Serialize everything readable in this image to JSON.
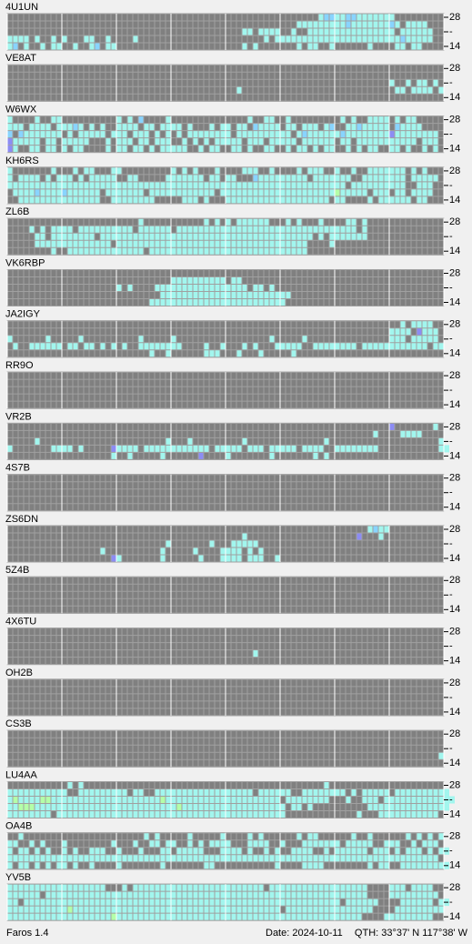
{
  "band_labels": [
    "28",
    "-",
    "14"
  ],
  "palette": {
    "1": "#a2f6ee",
    "2": "#88d4ff",
    "3": "#8c8cf4",
    "4": "#b4ffa8"
  },
  "stations": [
    {
      "name": "4U1UN",
      "rows": [
        ".........................................................12211221111111",
        ".....................................................1111111112111111121.1111",
        "...........................................11.1111..1..1111111111111111.111111",
        "1111.1..1.1...11..1....1.......................1.11111111111111111111111211111",
        "12.1..1.11..1..12.11.......................1.1.......1.11..1......1....11.11."
      ]
    },
    {
      "name": "VE8AT",
      "rows": [
        "",
        "",
        "......................................................................1..1.11.1",
        "..........................................1............................11.1111.1",
        ""
      ]
    },
    {
      "name": "W6WX",
      "rows": [
        "1....1..11..........1.1.2....1..............1..11..1.........1.1..1111.1.11...",
        "111.1111.11121.1.1..1111.11.1111.1...1.11.11.21111.11.111.12..11211111.21111..",
        "2.21111111.1.11111.111.111.1.1.1.11111111.1111111111.12111111211111111311111111",
        "311111.11.11111...1.111.11.111..1.1.1.11111.111.11111.111111.11.11111111111.111",
        "31..11.11.1.11....1.11.11.1.11111..1.11..11.1..11..1.11.1.11..1.1.11..11.1..1.1"
      ]
    },
    {
      "name": "KH6RS",
      "rows": [
        "1.......1...1.11...11.........1.1.1...1....111..1....1.111..1..1..1111111.1.1..",
        "1.1111.1.111.1.11111..11.....1111111.11.11...2111111111.1111111..11111111.11111",
        "11111111111111111111111111111111111111111111111111111111111111.1111111111..111.",
        ".1111211112111111.1111111.111111111111.111111111111111111111411111.111.11.1111..",
        "..111111111111111..11111111.....111.1...1111111111111111111.11....1.111111.11..."
      ]
    },
    {
      "name": "ZL6B",
      "rows": [
        "........................1...........1.1.1.111111...1.1...1....11.1.............",
        "....1.1.1111.1111111111.111111.111111111111111111111111111111111.1..............",
        ".....11.11111111.111111111111111111111111111111111111111.1.1111111..............",
        ".....11111111111111.11111111111111111111111111111111111....1.....................",
        "........1..11111111111111.11111111111111111111111111111........................."
      ]
    },
    {
      "name": "VK6RBP",
      "rows": [
        "",
        "..............................1111111111.11..............",
        "....................1.1....11111111111111111.11.1........",
        "............................111111111111111111111111......",
        "..........................1111111111111111111111111......."
      ]
    },
    {
      "name": "JA2IGY",
      "rows": [
        "........................................................................1.1111.",
        "......................................................................1111.3111",
        "1......1.....1..........1.....1.................1.....1...............111.11111.",
        ".1..111111.11.11.1.1.1..11111111....1..1...1.1...11111..11111111.111111111111.11",
        "..........................1..1......111...1...1.....1........................."
      ]
    },
    {
      "name": "RR9O",
      "rows": [
        "",
        "",
        "",
        "",
        ""
      ]
    },
    {
      "name": "VR2B",
      "rows": [
        "......................................................................3.......1",
        "...................................................................1....1111..",
        ".....1.......................1...1.........1..............1....................1.",
        "1.......1111.1.....31111.111111111111.11111.111.11111.1111..11111111...........11.",
        "...................1..1.....1......3....1.......1.......1.1......................"
      ]
    },
    {
      "name": "4S7B",
      "rows": [
        "",
        "",
        "",
        "",
        ""
      ]
    },
    {
      "name": "ZS6DN",
      "rows": [
        "..................................................................1211...........",
        "...........................................1....................3...1............",
        ".............................1.......1...11111.........................",
        ".................1..........1.....1....1111.1.1...........................",
        "...................31.......1......1...1111.111..1........................."
      ]
    },
    {
      "name": "5Z4B",
      "rows": [
        "",
        "",
        "",
        "",
        ""
      ]
    },
    {
      "name": "4X6TU",
      "rows": [
        "",
        "",
        "",
        ".............................................1........",
        ""
      ]
    },
    {
      "name": "OH2B",
      "rows": [
        "",
        "",
        "",
        "",
        ""
      ]
    },
    {
      "name": "CS3B",
      "rows": [
        "",
        "",
        "",
        "...............................................................................1",
        ""
      ]
    },
    {
      "name": "LU4AA",
      "rows": [
        "...........1.1............................................1.......................",
        "11111111111..111111111.11..111111111111111111.111111..11111111.1.11111.1111111111",
        "14111144111111111111111111114111111111111111111111.11111111...1..111.1111111111111",
        "114441111111111111111111111111141111111111111111111.11.1..........111111111111111",
        "11111111.111111111111111111111111111111111111111111.............1...11111111111."
      ]
    },
    {
      "name": "OA4B",
      "rows": [
        "..1......................1.1.....1.....1....1.1......1.11......1..1......1.1.1.1.",
        "11..1.1...1........1...1..11.11..1.1.1111...1111..1...1111111.11111..111..1.111",
        "1.11.1.1..1.1..111..1...1...11.11111...1111.1..1.1..1111..1.111111.111.1.111.1.11",
        "1111111111111111111111111111111111111111111111111111111111111111111111111111111",
        "1.11.1.1.11.1..1....1.......1.......11...........1....1111........1.11..111111111"
      ]
    },
    {
      "name": "YV5B",
      "rows": [
        "111111111111111111...1.111111111111111111111111.111111111111111111....111.1111.",
        "111111.11111111111111111111111111111111111111111111111111111111111....111111111",
        "11.1111111111111111111111111111111111111111111111111111111111.111111....111111.11",
        "11111111111411111111111111111111111111111111111111.1111111111111111....111111111",
        "11111111111111111114111111111111111111111111111111111111111111111....111111111"
      ]
    }
  ],
  "footer": {
    "app": "Faros 1.4",
    "date": "Date: 2024-10-11",
    "qth": "QTH: 33°37' N  117°38' W"
  }
}
